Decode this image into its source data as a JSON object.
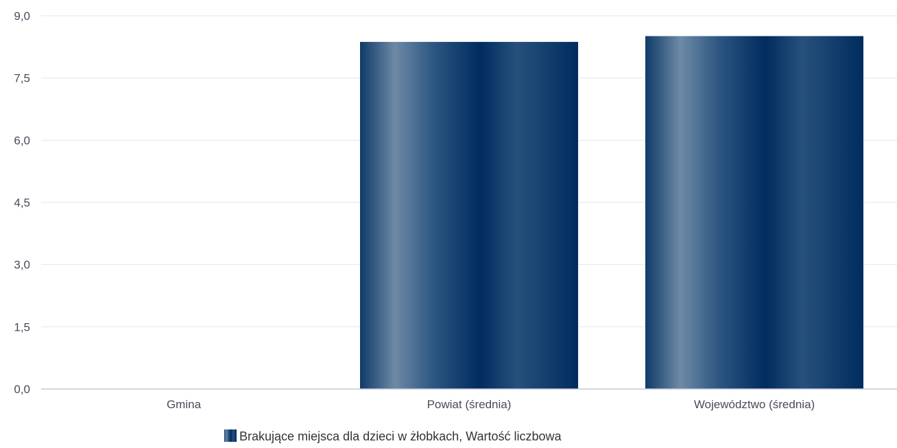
{
  "chart_data": {
    "type": "bar",
    "categories": [
      "Gmina",
      "Powiat (średnia)",
      "Województwo (średnia)"
    ],
    "series": [
      {
        "name": "Brakujące miejsca dla dzieci w żłobkach, Wartość liczbowa",
        "values": [
          0,
          8.37,
          8.51
        ]
      }
    ],
    "title": "",
    "xlabel": "",
    "ylabel": "",
    "ylim": [
      0,
      9.0
    ],
    "yticks": [
      "0,0",
      "1,5",
      "3,0",
      "4,5",
      "6,0",
      "7,5",
      "9,0"
    ],
    "grid": true,
    "legend_position": "bottom-center",
    "colors": {
      "bar_dark": "#002c5f",
      "bar_light": "#6d8aa6",
      "bar_mid": "#3a5f86"
    }
  },
  "legend": {
    "label": "Brakujące miejsca dla dzieci w żłobkach, Wartość liczbowa"
  }
}
